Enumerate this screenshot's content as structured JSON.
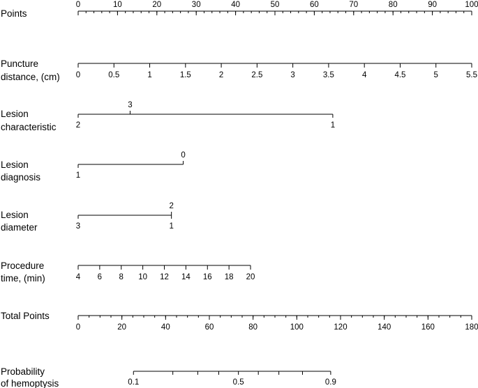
{
  "chart_data": {
    "type": "nomogram",
    "scales": [
      {
        "id": "points",
        "label_lines": [
          "Points"
        ],
        "range": [
          0,
          100
        ],
        "major_ticks": [
          0,
          10,
          20,
          30,
          40,
          50,
          60,
          70,
          80,
          90,
          100
        ],
        "tick_labels": [
          "0",
          "10",
          "20",
          "30",
          "40",
          "50",
          "60",
          "70",
          "80",
          "90",
          "100"
        ],
        "minor_step": 2,
        "labels_above": true
      },
      {
        "id": "puncture-distance",
        "label_lines": [
          "Puncture",
          "distance, (cm)"
        ],
        "points_range": [
          0,
          100
        ],
        "major_ticks": [
          0,
          0.5,
          1,
          1.5,
          2,
          2.5,
          3,
          3.5,
          4,
          4.5,
          5,
          5.5
        ],
        "tick_labels": [
          "0",
          "0.5",
          "1",
          "1.5",
          "2",
          "2.5",
          "3",
          "3.5",
          "4",
          "4.5",
          "5",
          "5.5"
        ],
        "value_range": [
          0,
          5.5
        ]
      },
      {
        "id": "lesion-characteristic",
        "label_lines": [
          "Lesion",
          "characteristic"
        ],
        "categories": [
          {
            "label": "2",
            "points": 0,
            "side": "below"
          },
          {
            "label": "3",
            "points": 13.2,
            "side": "above"
          },
          {
            "label": "1",
            "points": 64.7,
            "side": "below"
          }
        ]
      },
      {
        "id": "lesion-diagnosis",
        "label_lines": [
          "Lesion",
          "diagnosis"
        ],
        "categories": [
          {
            "label": "1",
            "points": 0,
            "side": "below"
          },
          {
            "label": "0",
            "points": 26.7,
            "side": "above"
          }
        ]
      },
      {
        "id": "lesion-diameter",
        "label_lines": [
          "Lesion",
          "diameter"
        ],
        "categories": [
          {
            "label": "3",
            "points": 0,
            "side": "below"
          },
          {
            "label": "2",
            "points": 23.7,
            "side": "above"
          },
          {
            "label": "1",
            "points": 23.7,
            "side": "below"
          }
        ]
      },
      {
        "id": "procedure-time",
        "label_lines": [
          "Procedure",
          "time, (min)"
        ],
        "points_range": [
          0,
          43.8
        ],
        "major_ticks": [
          4,
          6,
          8,
          10,
          12,
          14,
          16,
          18,
          20
        ],
        "tick_labels": [
          "4",
          "6",
          "8",
          "10",
          "12",
          "14",
          "16",
          "18",
          "20"
        ],
        "value_range": [
          4,
          20
        ]
      },
      {
        "id": "total-points",
        "label_lines": [
          "Total Points"
        ],
        "range": [
          0,
          180
        ],
        "major_ticks": [
          0,
          20,
          40,
          60,
          80,
          100,
          120,
          140,
          160,
          180
        ],
        "tick_labels": [
          "0",
          "20",
          "40",
          "60",
          "80",
          "100",
          "120",
          "140",
          "160",
          "180"
        ],
        "minor_step": 5
      },
      {
        "id": "probability",
        "label_lines": [
          "Probability",
          "of hemoptysis"
        ],
        "total_points_range": [
          25.3,
          115.5
        ],
        "major_ticks": [
          0.1,
          0.2,
          0.3,
          0.4,
          0.5,
          0.6,
          0.7,
          0.8,
          0.9
        ],
        "tick_labels": [
          "0.1",
          "",
          "",
          "",
          "0.5",
          "",
          "",
          "",
          "0.9"
        ],
        "tick_total_points": [
          25.3,
          43.3,
          54.7,
          64.3,
          73.3,
          82.4,
          91.8,
          102.6,
          115.5
        ]
      }
    ]
  }
}
